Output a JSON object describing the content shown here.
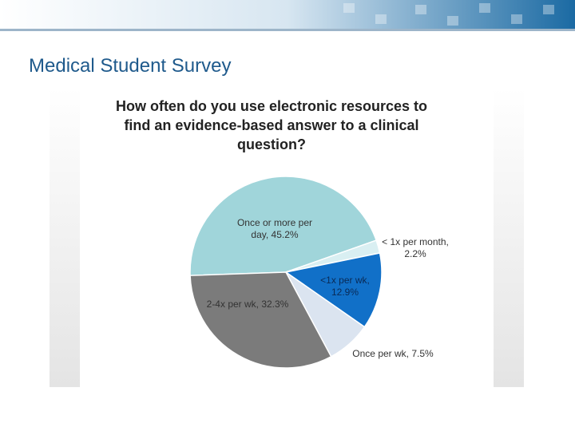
{
  "header": {
    "title": "Medical Student Survey"
  },
  "chart_data": {
    "type": "pie",
    "title": [
      "How often do you use electronic resources to",
      "find an evidence-based  answer to a clinical",
      "question?"
    ],
    "values": [
      45.2,
      2.2,
      12.9,
      7.5,
      32.3
    ],
    "value_labels": [
      [
        "Once or more per",
        "day, 45.2%"
      ],
      [
        "< 1x per month,",
        "2.2%"
      ],
      [
        "<1x per wk,",
        "12.9%"
      ],
      [
        "Once per wk, 7.5%"
      ],
      [
        "2-4x per wk, 32.3%"
      ]
    ],
    "colors": [
      "#a0d5da",
      "#d9eff2",
      "#1170c8",
      "#dbe4f0",
      "#7b7b7b"
    ]
  }
}
